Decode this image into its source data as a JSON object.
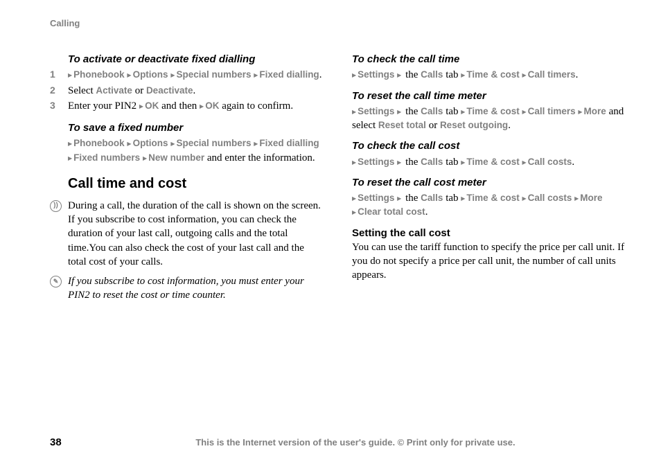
{
  "header": "Calling",
  "page_number": "38",
  "footer": "This is the Internet version of the user's guide. © Print only for private use.",
  "colors": {
    "grey": "#808080",
    "text": "#000000",
    "bg": "#ffffff"
  },
  "left": {
    "proc1_title": "To activate or deactivate fixed dialling",
    "s1_num": "1",
    "s1_m1": "Phonebook",
    "s1_m2": "Options",
    "s1_m3": "Special numbers",
    "s1_m4": "Fixed dialling",
    "s2_num": "2",
    "s2_pre": "Select ",
    "s2_m1": "Activate",
    "s2_mid": " or ",
    "s2_m2": "Deactivate",
    "s3_num": "3",
    "s3_pre": "Enter your PIN2 ",
    "s3_m1": "OK",
    "s3_mid": " and then ",
    "s3_m2": "OK",
    "s3_post": " again to confirm.",
    "proc2_title": "To save a fixed number",
    "p2_m1": "Phonebook",
    "p2_m2": "Options",
    "p2_m3": "Special numbers",
    "p2_m4": "Fixed dialling",
    "p2_m5": "Fixed numbers",
    "p2_m6": "New number",
    "p2_post": " and enter the information.",
    "heading": "Call time and cost",
    "info_para": "During a call, the duration of the call is shown on the screen. If you subscribe to cost information, you can check the duration of your last call, outgoing calls and the total time.You can also check the cost of your last call and the total cost of your calls.",
    "note": "If you subscribe to cost information, you must enter your PIN2 to reset the cost or time counter."
  },
  "right": {
    "r1_title": "To check the call time",
    "r1_m1": "Settings",
    "r1_t1": " the ",
    "r1_m2": "Calls",
    "r1_t2": " tab ",
    "r1_m3": "Time & cost",
    "r1_m4": "Call timers",
    "r2_title": "To reset the call time meter",
    "r2_m1": "Settings",
    "r2_t1": " the ",
    "r2_m2": "Calls",
    "r2_t2": " tab ",
    "r2_m3": "Time & cost",
    "r2_m4": "Call timers",
    "r2_m5": "More",
    "r2_t3": " and select ",
    "r2_m6": "Reset total",
    "r2_t4": " or ",
    "r2_m7": "Reset outgoing",
    "r3_title": "To check the call cost",
    "r3_m1": "Settings",
    "r3_t1": " the ",
    "r3_m2": "Calls",
    "r3_t2": " tab ",
    "r3_m3": "Time & cost",
    "r3_m4": "Call costs",
    "r4_title": "To reset the call cost meter",
    "r4_m1": "Settings",
    "r4_t1": " the ",
    "r4_m2": "Calls",
    "r4_t2": " tab ",
    "r4_m3": "Time & cost",
    "r4_m4": "Call costs",
    "r4_m5": "More",
    "r4_m6": "Clear total cost",
    "sub_heading": "Setting the call cost",
    "sub_para": "You can use the tariff function to specify the price per call unit. If you do not specify a price per call unit, the number of call units appears."
  }
}
